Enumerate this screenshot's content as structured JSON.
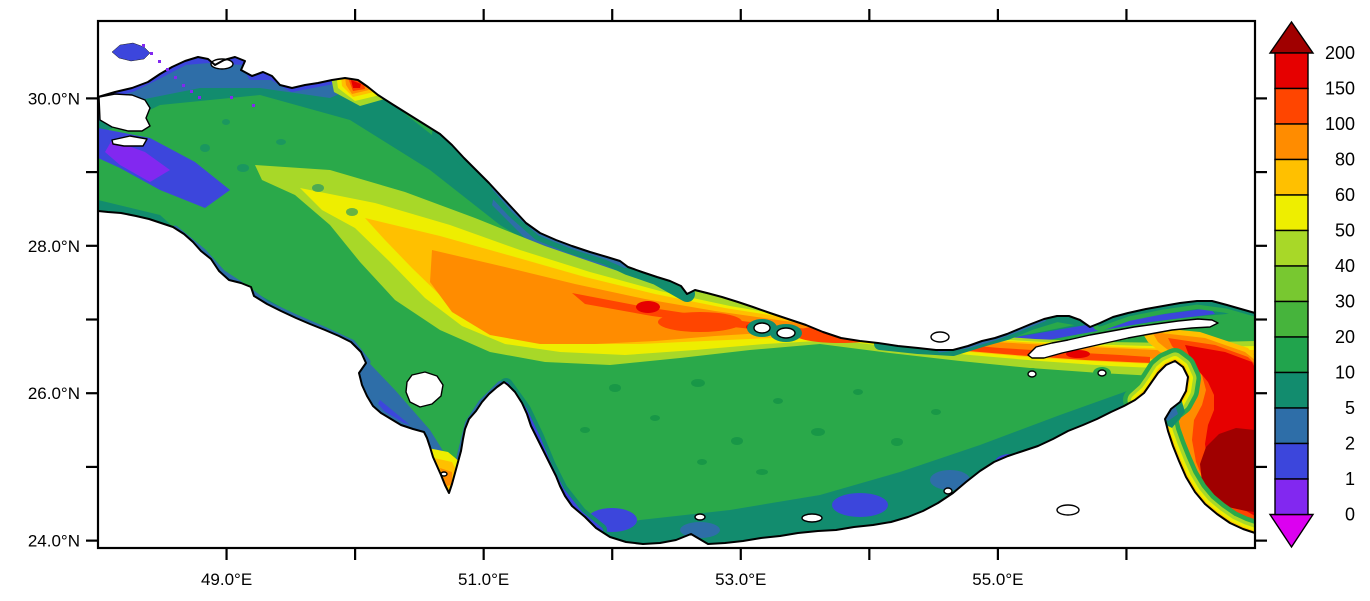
{
  "figure": {
    "kind": "filled-contour-map",
    "region_depicted": "Persian Gulf and Strait of Hormuz",
    "background_color": "#ffffff",
    "frame_color": "#000000"
  },
  "axes": {
    "x": {
      "major_ticks": [
        {
          "label": "49.0°E",
          "lon": 49.0
        },
        {
          "label": "51.0°E",
          "lon": 51.0
        },
        {
          "label": "53.0°E",
          "lon": 53.0
        },
        {
          "label": "55.0°E",
          "lon": 55.0
        }
      ],
      "minor_tick_lons": [
        50.0,
        52.0,
        54.0,
        56.0
      ],
      "range_lon": [
        48.0,
        57.0
      ]
    },
    "y": {
      "major_ticks": [
        {
          "label": "30.0°N",
          "lat": 30.0
        },
        {
          "label": "28.0°N",
          "lat": 28.0
        },
        {
          "label": "26.0°N",
          "lat": 26.0
        },
        {
          "label": "24.0°N",
          "lat": 24.0
        }
      ],
      "minor_tick_lats": [
        29.0,
        27.0,
        25.0
      ],
      "range_lat": [
        23.9,
        31.05
      ]
    }
  },
  "colorbar": {
    "boundary_labels_top_to_bottom": [
      "200",
      "150",
      "100",
      "80",
      "60",
      "50",
      "40",
      "30",
      "20",
      "10",
      "5",
      "2",
      "1",
      "0"
    ],
    "cell_colors_top_to_bottom": [
      "#E60000",
      "#FF4500",
      "#FF8C00",
      "#FFC000",
      "#EEEE00",
      "#A8D828",
      "#78C830",
      "#46B43C",
      "#21A44D",
      "#128C6E",
      "#2E6EA8",
      "#3C46DC",
      "#8228F0"
    ],
    "over_arrow_color": "#A00000",
    "under_arrow_color": "#DC00F0",
    "outline_color": "#000000"
  },
  "chart_data": {
    "type": "heatmap",
    "subtype": "filled_contour_geographic_map",
    "title": "",
    "xlabel": "",
    "ylabel": "",
    "x_axis": {
      "ticks": [
        "49.0°E",
        "51.0°E",
        "53.0°E",
        "55.0°E"
      ],
      "range": [
        48.0,
        57.0
      ],
      "units": "degrees east"
    },
    "y_axis": {
      "ticks": [
        "30.0°N",
        "28.0°N",
        "26.0°N",
        "24.0°N"
      ],
      "range": [
        23.9,
        31.05
      ],
      "units": "degrees north"
    },
    "contour_levels": [
      0,
      1,
      2,
      5,
      10,
      20,
      30,
      40,
      50,
      60,
      80,
      100,
      150,
      200
    ],
    "palette": [
      "#8228F0",
      "#3C46DC",
      "#2E6EA8",
      "#128C6E",
      "#21A44D",
      "#46B43C",
      "#78C830",
      "#A8D828",
      "#EEEE00",
      "#FFC000",
      "#FF8C00",
      "#FF4500",
      "#E60000"
    ],
    "over_value_color": "#A00000",
    "under_value_color": "#DC00F0",
    "legend_position": "right colorbar with over/under arrows",
    "grid": false,
    "features": [
      {
        "name": "deep basin in Gulf of Oman at southeast corner",
        "approx_lon": 56.6,
        "approx_lat": 24.9,
        "value_range": "over 200"
      },
      {
        "name": "Strait of Hormuz deep bend wrapping Musandam Peninsula",
        "approx_lon": 56.4,
        "approx_lat": 26.3,
        "value_range": "100-200"
      },
      {
        "name": "central axial trough along Iranian side",
        "approx_lon_span": [
          51.0,
          55.5
        ],
        "approx_lat": 26.8,
        "value_range": "60-150"
      },
      {
        "name": "broad mid-gulf shelf",
        "approx_lon_span": [
          49.5,
          52.5
        ],
        "approx_lat": 27.5,
        "value_range": "40-80"
      },
      {
        "name": "northwestern head of gulf near Shatt al-Arab delta",
        "approx_lon_span": [
          48.0,
          50.0
        ],
        "approx_lat_span": [
          28.5,
          30.5
        ],
        "value_range": "1-30"
      },
      {
        "name": "southern shelf along Saudi-Qatar-UAE coast",
        "approx_lon_span": [
          50.0,
          56.0
        ],
        "approx_lat_span": [
          24.0,
          26.0
        ],
        "value_range": "2-30"
      },
      {
        "name": "shallow fringe around Bahrain and Gulf of Salwa",
        "approx_lon": 50.6,
        "approx_lat": 25.5,
        "value_range": "0-5 with 50-100 patch in Gulf of Salwa"
      },
      {
        "name": "small high-value spot on north coast near delta",
        "approx_lon": 49.9,
        "approx_lat": 30.2,
        "value_range": "100-200"
      },
      {
        "name": "land areas rendered white: Qatar peninsula, Bahrain, Qeshm Island, Musandam Peninsula, delta islands",
        "value_range": "no data"
      }
    ]
  }
}
